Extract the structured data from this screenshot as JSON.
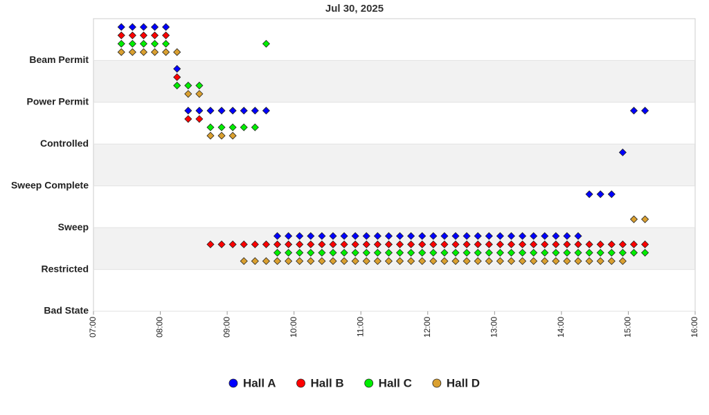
{
  "chart_data": {
    "type": "scatter",
    "title": "Jul 30, 2025",
    "xlim": [
      "07:00",
      "16:00"
    ],
    "xticks": [
      "07:00",
      "08:00",
      "09:00",
      "10:00",
      "11:00",
      "12:00",
      "13:00",
      "14:00",
      "15:00",
      "16:00"
    ],
    "ylim": [
      0,
      7
    ],
    "yticks": [
      {
        "value": 0,
        "label": "Bad State"
      },
      {
        "value": 1,
        "label": "Restricted"
      },
      {
        "value": 2,
        "label": "Sweep"
      },
      {
        "value": 3,
        "label": "Sweep Complete"
      },
      {
        "value": 4,
        "label": "Controlled"
      },
      {
        "value": 5,
        "label": "Power Permit"
      },
      {
        "value": 6,
        "label": "Beam Permit"
      }
    ],
    "banded_background": true,
    "legend": "bottom",
    "marker": "diamond",
    "series": [
      {
        "name": "Hall A",
        "color": "#0000ff",
        "x": [
          "07:25",
          "07:35",
          "07:45",
          "07:55",
          "08:05",
          "08:15",
          "08:25",
          "08:35",
          "08:45",
          "08:55",
          "09:05",
          "09:15",
          "09:25",
          "09:35",
          "09:45",
          "09:55",
          "10:05",
          "10:15",
          "10:25",
          "10:35",
          "10:45",
          "10:55",
          "11:05",
          "11:15",
          "11:25",
          "11:35",
          "11:45",
          "11:55",
          "12:05",
          "12:15",
          "12:25",
          "12:35",
          "12:45",
          "12:55",
          "13:05",
          "13:15",
          "13:25",
          "13:35",
          "13:45",
          "13:55",
          "14:05",
          "14:15",
          "14:25",
          "14:35",
          "14:45",
          "14:55",
          "15:05",
          "15:15"
        ],
        "values": [
          6.8,
          6.8,
          6.8,
          6.8,
          6.8,
          5.8,
          4.8,
          4.8,
          4.8,
          4.8,
          4.8,
          4.8,
          4.8,
          4.8,
          1.8,
          1.8,
          1.8,
          1.8,
          1.8,
          1.8,
          1.8,
          1.8,
          1.8,
          1.8,
          1.8,
          1.8,
          1.8,
          1.8,
          1.8,
          1.8,
          1.8,
          1.8,
          1.8,
          1.8,
          1.8,
          1.8,
          1.8,
          1.8,
          1.8,
          1.8,
          1.8,
          1.8,
          2.8,
          2.8,
          2.8,
          3.8,
          4.8,
          4.8
        ]
      },
      {
        "name": "Hall B",
        "color": "#ff0000",
        "x": [
          "07:25",
          "07:35",
          "07:45",
          "07:55",
          "08:05",
          "08:15",
          "08:25",
          "08:35",
          "08:45",
          "08:55",
          "09:05",
          "09:15",
          "09:25",
          "09:35",
          "09:45",
          "09:55",
          "10:05",
          "10:15",
          "10:25",
          "10:35",
          "10:45",
          "10:55",
          "11:05",
          "11:15",
          "11:25",
          "11:35",
          "11:45",
          "11:55",
          "12:05",
          "12:15",
          "12:25",
          "12:35",
          "12:45",
          "12:55",
          "13:05",
          "13:15",
          "13:25",
          "13:35",
          "13:45",
          "13:55",
          "14:05",
          "14:15",
          "14:25",
          "14:35",
          "14:45",
          "14:55",
          "15:05",
          "15:15"
        ],
        "values": [
          6.6,
          6.6,
          6.6,
          6.6,
          6.6,
          5.6,
          4.6,
          4.6,
          1.6,
          1.6,
          1.6,
          1.6,
          1.6,
          1.6,
          1.6,
          1.6,
          1.6,
          1.6,
          1.6,
          1.6,
          1.6,
          1.6,
          1.6,
          1.6,
          1.6,
          1.6,
          1.6,
          1.6,
          1.6,
          1.6,
          1.6,
          1.6,
          1.6,
          1.6,
          1.6,
          1.6,
          1.6,
          1.6,
          1.6,
          1.6,
          1.6,
          1.6,
          1.6,
          1.6,
          1.6,
          1.6,
          1.6,
          1.6
        ]
      },
      {
        "name": "Hall C",
        "color": "#00ee00",
        "x": [
          "07:25",
          "07:35",
          "07:45",
          "07:55",
          "08:05",
          "08:15",
          "08:25",
          "08:35",
          "08:45",
          "08:55",
          "09:05",
          "09:15",
          "09:25",
          "09:35",
          "09:45",
          "09:55",
          "10:05",
          "10:15",
          "10:25",
          "10:35",
          "10:45",
          "10:55",
          "11:05",
          "11:15",
          "11:25",
          "11:35",
          "11:45",
          "11:55",
          "12:05",
          "12:15",
          "12:25",
          "12:35",
          "12:45",
          "12:55",
          "13:05",
          "13:15",
          "13:25",
          "13:35",
          "13:45",
          "13:55",
          "14:05",
          "14:15",
          "14:25",
          "14:35",
          "14:45",
          "14:55",
          "15:05",
          "15:15"
        ],
        "values": [
          6.4,
          6.4,
          6.4,
          6.4,
          6.4,
          5.4,
          5.4,
          5.4,
          4.4,
          4.4,
          4.4,
          4.4,
          4.4,
          6.4,
          1.4,
          1.4,
          1.4,
          1.4,
          1.4,
          1.4,
          1.4,
          1.4,
          1.4,
          1.4,
          1.4,
          1.4,
          1.4,
          1.4,
          1.4,
          1.4,
          1.4,
          1.4,
          1.4,
          1.4,
          1.4,
          1.4,
          1.4,
          1.4,
          1.4,
          1.4,
          1.4,
          1.4,
          1.4,
          1.4,
          1.4,
          1.4,
          1.4,
          1.4
        ]
      },
      {
        "name": "Hall D",
        "color": "#daa030",
        "x": [
          "07:25",
          "07:35",
          "07:45",
          "07:55",
          "08:05",
          "08:15",
          "08:25",
          "08:35",
          "08:45",
          "08:55",
          "09:05",
          "09:15",
          "09:25",
          "09:35",
          "09:45",
          "09:55",
          "10:05",
          "10:15",
          "10:25",
          "10:35",
          "10:45",
          "10:55",
          "11:05",
          "11:15",
          "11:25",
          "11:35",
          "11:45",
          "11:55",
          "12:05",
          "12:15",
          "12:25",
          "12:35",
          "12:45",
          "12:55",
          "13:05",
          "13:15",
          "13:25",
          "13:35",
          "13:45",
          "13:55",
          "14:05",
          "14:15",
          "14:25",
          "14:35",
          "14:45",
          "14:55",
          "15:05",
          "15:15"
        ],
        "values": [
          6.2,
          6.2,
          6.2,
          6.2,
          6.2,
          6.2,
          5.2,
          5.2,
          4.2,
          4.2,
          4.2,
          1.2,
          1.2,
          1.2,
          1.2,
          1.2,
          1.2,
          1.2,
          1.2,
          1.2,
          1.2,
          1.2,
          1.2,
          1.2,
          1.2,
          1.2,
          1.2,
          1.2,
          1.2,
          1.2,
          1.2,
          1.2,
          1.2,
          1.2,
          1.2,
          1.2,
          1.2,
          1.2,
          1.2,
          1.2,
          1.2,
          1.2,
          1.2,
          1.2,
          1.2,
          1.2,
          2.2,
          2.2
        ]
      }
    ]
  }
}
